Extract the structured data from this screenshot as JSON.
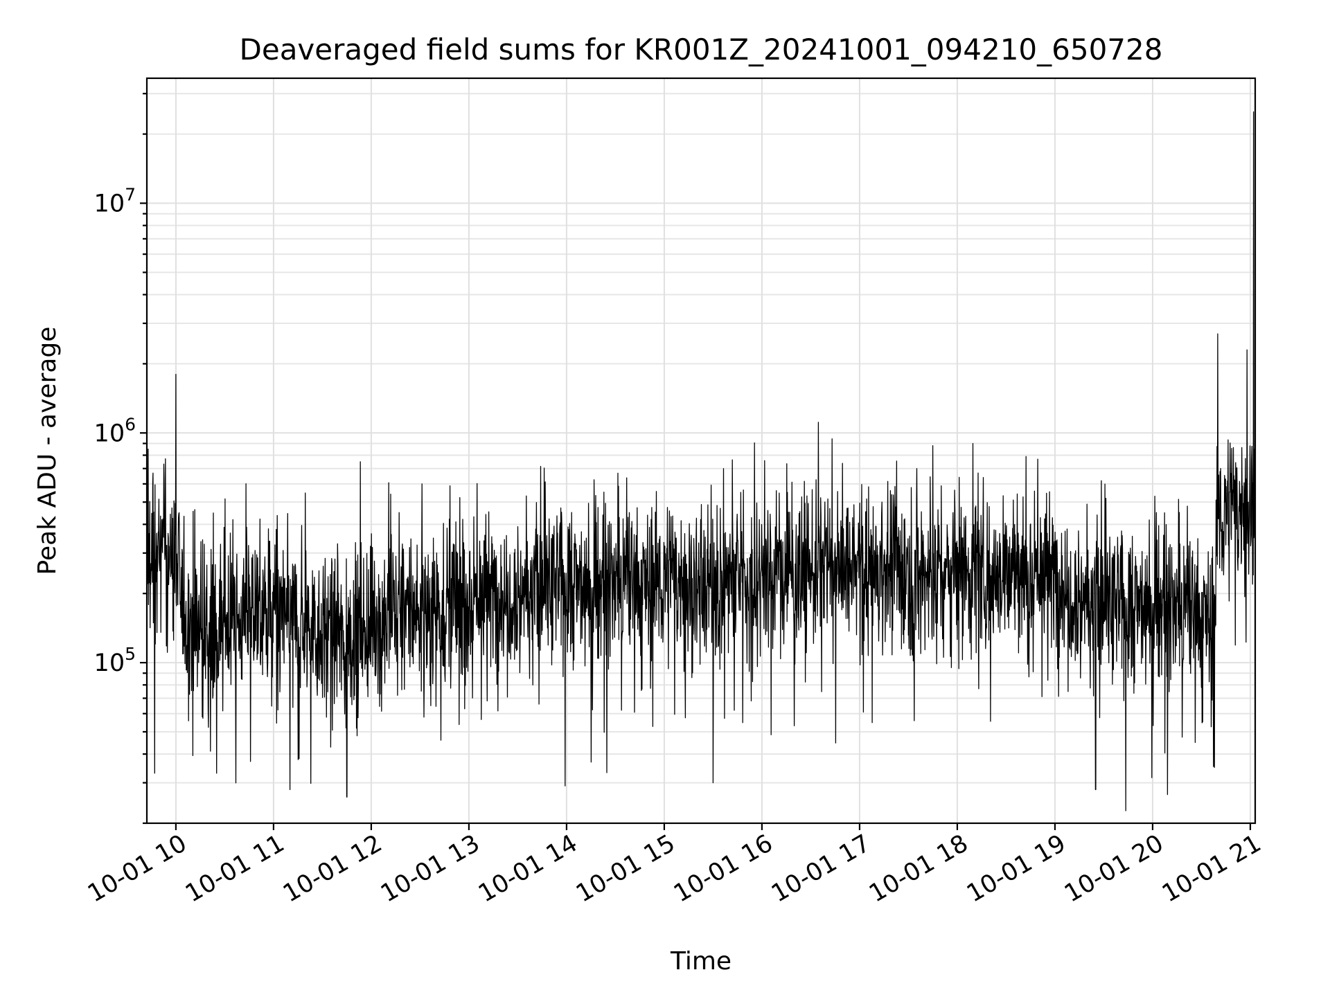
{
  "chart_data": {
    "type": "line",
    "title": "Deaveraged field sums for KR001Z_20241001_094210_650728",
    "xlabel": "Time",
    "ylabel": "Peak ADU - average",
    "yscale": "log",
    "ylim": [
      20000,
      35000000
    ],
    "xlim": [
      "2024-10-01T09:42:10",
      "2024-10-01T21:03:00"
    ],
    "grid": true,
    "x_ticks": [
      {
        "t": "2024-10-01T10:00:00",
        "label": "10-01 10"
      },
      {
        "t": "2024-10-01T11:00:00",
        "label": "10-01 11"
      },
      {
        "t": "2024-10-01T12:00:00",
        "label": "10-01 12"
      },
      {
        "t": "2024-10-01T13:00:00",
        "label": "10-01 13"
      },
      {
        "t": "2024-10-01T14:00:00",
        "label": "10-01 14"
      },
      {
        "t": "2024-10-01T15:00:00",
        "label": "10-01 15"
      },
      {
        "t": "2024-10-01T16:00:00",
        "label": "10-01 16"
      },
      {
        "t": "2024-10-01T17:00:00",
        "label": "10-01 17"
      },
      {
        "t": "2024-10-01T18:00:00",
        "label": "10-01 18"
      },
      {
        "t": "2024-10-01T19:00:00",
        "label": "10-01 19"
      },
      {
        "t": "2024-10-01T20:00:00",
        "label": "10-01 20"
      },
      {
        "t": "2024-10-01T21:00:00",
        "label": "10-01 21"
      }
    ],
    "y_ticks": [
      {
        "value": 100000,
        "base": "10",
        "exp": "5"
      },
      {
        "value": 1000000,
        "base": "10",
        "exp": "6"
      },
      {
        "value": 10000000,
        "base": "10",
        "exp": "7"
      }
    ],
    "series": [
      {
        "color": "#000000",
        "x": [
          "2024-10-01T09:42:10",
          "2024-10-01T09:50:00",
          "2024-10-01T10:00:00",
          "2024-10-01T10:05:00",
          "2024-10-01T10:15:00",
          "2024-10-01T10:30:00",
          "2024-10-01T10:45:00",
          "2024-10-01T11:00:00",
          "2024-10-01T11:15:00",
          "2024-10-01T11:30:00",
          "2024-10-01T11:45:00",
          "2024-10-01T12:00:00",
          "2024-10-01T12:15:00",
          "2024-10-01T12:30:00",
          "2024-10-01T12:45:00",
          "2024-10-01T13:00:00",
          "2024-10-01T13:15:00",
          "2024-10-01T13:30:00",
          "2024-10-01T13:45:00",
          "2024-10-01T14:00:00",
          "2024-10-01T14:15:00",
          "2024-10-01T14:30:00",
          "2024-10-01T14:45:00",
          "2024-10-01T15:00:00",
          "2024-10-01T15:15:00",
          "2024-10-01T15:30:00",
          "2024-10-01T15:45:00",
          "2024-10-01T16:00:00",
          "2024-10-01T16:15:00",
          "2024-10-01T16:30:00",
          "2024-10-01T16:45:00",
          "2024-10-01T17:00:00",
          "2024-10-01T17:15:00",
          "2024-10-01T17:30:00",
          "2024-10-01T17:45:00",
          "2024-10-01T18:00:00",
          "2024-10-01T18:15:00",
          "2024-10-01T18:30:00",
          "2024-10-01T18:45:00",
          "2024-10-01T19:00:00",
          "2024-10-01T19:15:00",
          "2024-10-01T19:30:00",
          "2024-10-01T19:45:00",
          "2024-10-01T20:00:00",
          "2024-10-01T20:15:00",
          "2024-10-01T20:30:00",
          "2024-10-01T20:38:00",
          "2024-10-01T20:40:00",
          "2024-10-01T20:50:00",
          "2024-10-01T21:00:00",
          "2024-10-01T21:02:00",
          "2024-10-01T21:03:00"
        ],
        "y": [
          250000,
          300000,
          280000,
          160000,
          140000,
          150000,
          160000,
          170000,
          150000,
          140000,
          130000,
          150000,
          160000,
          170000,
          180000,
          190000,
          200000,
          210000,
          210000,
          220000,
          210000,
          220000,
          220000,
          230000,
          220000,
          220000,
          240000,
          250000,
          250000,
          260000,
          260000,
          250000,
          260000,
          250000,
          240000,
          250000,
          260000,
          250000,
          250000,
          240000,
          200000,
          180000,
          170000,
          180000,
          170000,
          160000,
          150000,
          450000,
          450000,
          480000,
          600000,
          500000
        ],
        "peaks": [
          {
            "t": "2024-10-01T10:00:00",
            "y": 1800000
          },
          {
            "t": "2024-10-01T09:43:00",
            "y": 850000
          },
          {
            "t": "2024-10-01T17:45:00",
            "y": 880000
          },
          {
            "t": "2024-10-01T20:40:00",
            "y": 2700000
          },
          {
            "t": "2024-10-01T20:58:00",
            "y": 2300000
          },
          {
            "t": "2024-10-01T21:02:00",
            "y": 25000000
          },
          {
            "t": "2024-10-01T09:47:00",
            "y": 33000
          },
          {
            "t": "2024-10-01T10:25:00",
            "y": 33000
          },
          {
            "t": "2024-10-01T11:10:00",
            "y": 28000
          },
          {
            "t": "2024-10-01T11:45:00",
            "y": 26000
          },
          {
            "t": "2024-10-01T15:30:00",
            "y": 30000
          },
          {
            "t": "2024-10-01T19:25:00",
            "y": 28000
          },
          {
            "t": "2024-10-01T20:38:00",
            "y": 35000
          }
        ]
      }
    ]
  }
}
